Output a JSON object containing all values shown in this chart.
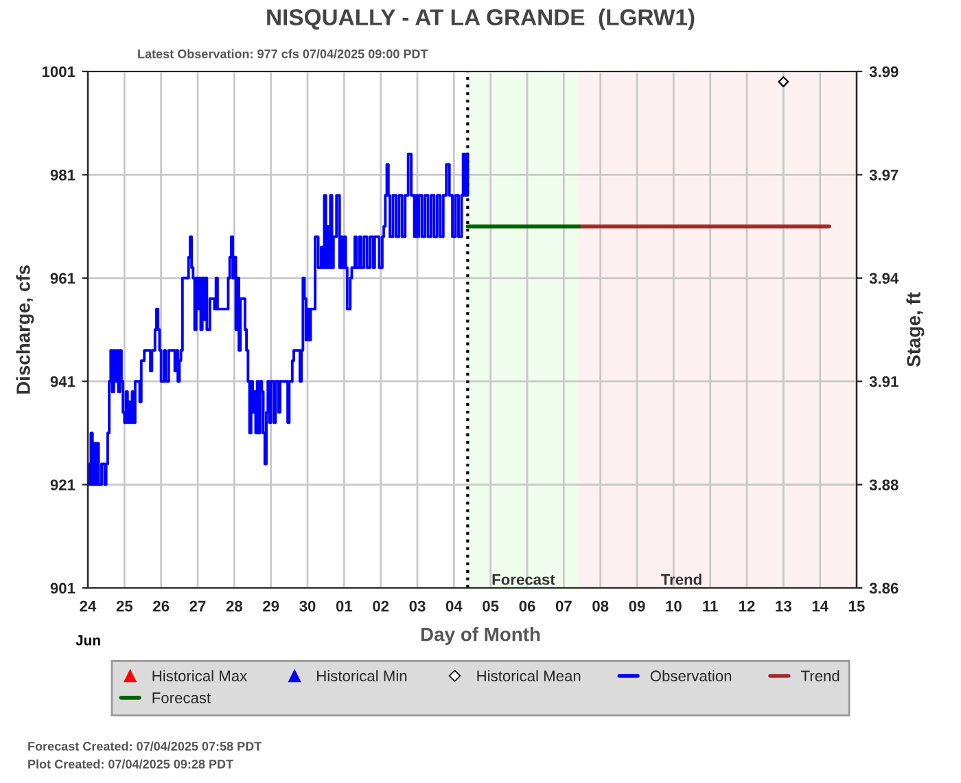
{
  "chart_data": {
    "type": "step",
    "title": "NISQUALLY - AT LA GRANDE  (LGRW1)",
    "xlabel": "Day of Month",
    "ylabel": "Discharge, cfs",
    "y2label": "Stage, ft",
    "annotations": [
      "Latest Observation: 977 cfs 07/04/2025 09:00 PDT",
      "Jun",
      "Forecast Created: 07/04/2025 07:58 PDT",
      "Plot Created: 07/04/2025 09:28 PDT"
    ],
    "xlim": [
      "2025-06-24",
      "2025-07-15"
    ],
    "xticks": [
      {
        "value": "2025-06-24",
        "label": "24"
      },
      {
        "value": "2025-06-25",
        "label": "25"
      },
      {
        "value": "2025-06-26",
        "label": "26"
      },
      {
        "value": "2025-06-27",
        "label": "27"
      },
      {
        "value": "2025-06-28",
        "label": "28"
      },
      {
        "value": "2025-06-29",
        "label": "29"
      },
      {
        "value": "2025-06-30",
        "label": "30"
      },
      {
        "value": "2025-07-01",
        "label": "01"
      },
      {
        "value": "2025-07-02",
        "label": "02"
      },
      {
        "value": "2025-07-03",
        "label": "03"
      },
      {
        "value": "2025-07-04",
        "label": "04"
      },
      {
        "value": "2025-07-05",
        "label": "05"
      },
      {
        "value": "2025-07-06",
        "label": "06"
      },
      {
        "value": "2025-07-07",
        "label": "07"
      },
      {
        "value": "2025-07-08",
        "label": "08"
      },
      {
        "value": "2025-07-09",
        "label": "09"
      },
      {
        "value": "2025-07-10",
        "label": "10"
      },
      {
        "value": "2025-07-11",
        "label": "11"
      },
      {
        "value": "2025-07-12",
        "label": "12"
      },
      {
        "value": "2025-07-13",
        "label": "13"
      },
      {
        "value": "2025-07-14",
        "label": "14"
      },
      {
        "value": "2025-07-15",
        "label": "15"
      }
    ],
    "ylim": [
      901,
      1001
    ],
    "yticks": [
      901,
      921,
      941,
      961,
      981,
      1001
    ],
    "y2lim": [
      3.8575,
      3.9925
    ],
    "y2ticks": [
      {
        "value": 3.8575,
        "label": "3.86"
      },
      {
        "value": 3.8845,
        "label": "3.88"
      },
      {
        "value": 3.9115,
        "label": "3.91"
      },
      {
        "value": 3.9385,
        "label": "3.94"
      },
      {
        "value": 3.9655,
        "label": "3.97"
      },
      {
        "value": 3.9925,
        "label": "3.99"
      }
    ],
    "grid": true,
    "legend": "bottom",
    "ref_lines": [
      {
        "axis": "x",
        "value": "2025-07-04T09:00",
        "color": "#000000",
        "line_style": "dotted"
      }
    ],
    "bands": [
      {
        "axis": "x",
        "from": "2025-07-04T09:00",
        "to": "2025-07-07T10:00",
        "label": "Forecast",
        "color": "#effcee"
      },
      {
        "axis": "x",
        "from": "2025-07-07T10:00",
        "to": "2025-07-15",
        "label": "Trend",
        "color": "#fdf0f0"
      }
    ],
    "series": [
      {
        "name": "Historical Max",
        "type": "scatter",
        "marker": "triangle",
        "color": "#ff0000"
      },
      {
        "name": "Historical Min",
        "type": "scatter",
        "marker": "triangle",
        "color": "#0000ff"
      },
      {
        "name": "Historical Mean",
        "type": "scatter",
        "marker": "diamond",
        "color": "#000000",
        "x": [
          "2025-07-13T00:00"
        ],
        "values": [
          999
        ]
      },
      {
        "name": "Observation",
        "color": "#0000ff",
        "x": [
          "2025-06-24T00:00",
          "2025-06-24T01:00",
          "2025-06-24T02:00",
          "2025-06-24T03:00",
          "2025-06-24T04:00",
          "2025-06-24T05:00",
          "2025-06-24T06:00",
          "2025-06-24T07:00",
          "2025-06-24T09:00",
          "2025-06-24T11:00",
          "2025-06-24T12:00",
          "2025-06-24T13:00",
          "2025-06-24T14:00",
          "2025-06-24T15:00",
          "2025-06-24T16:00",
          "2025-06-24T17:00",
          "2025-06-24T18:00",
          "2025-06-24T19:00",
          "2025-06-24T20:00",
          "2025-06-24T21:00",
          "2025-06-24T22:00",
          "2025-06-24T23:00",
          "2025-06-25T00:00",
          "2025-06-25T01:00",
          "2025-06-25T02:00",
          "2025-06-25T03:00",
          "2025-06-25T04:00",
          "2025-06-25T05:00",
          "2025-06-25T06:00",
          "2025-06-25T07:00",
          "2025-06-25T10:00",
          "2025-06-25T11:00",
          "2025-06-25T13:00",
          "2025-06-25T17:00",
          "2025-06-25T18:00",
          "2025-06-25T20:00",
          "2025-06-25T21:00",
          "2025-06-25T22:00",
          "2025-06-25T23:00",
          "2025-06-26T00:00",
          "2025-06-26T02:00",
          "2025-06-26T03:00",
          "2025-06-26T05:00",
          "2025-06-26T06:00",
          "2025-06-26T09:00",
          "2025-06-26T10:00",
          "2025-06-26T11:00",
          "2025-06-26T12:00",
          "2025-06-26T13:00",
          "2025-06-26T14:00",
          "2025-06-26T17:00",
          "2025-06-26T18:00",
          "2025-06-26T19:00",
          "2025-06-26T20:00",
          "2025-06-26T21:00",
          "2025-06-26T22:00",
          "2025-06-26T23:00",
          "2025-06-27T00:00",
          "2025-06-27T01:00",
          "2025-06-27T02:00",
          "2025-06-27T03:00",
          "2025-06-27T04:00",
          "2025-06-27T05:00",
          "2025-06-27T06:00",
          "2025-06-27T08:00",
          "2025-06-27T11:00",
          "2025-06-27T12:00",
          "2025-06-27T13:00",
          "2025-06-27T20:00",
          "2025-06-27T21:00",
          "2025-06-27T22:00",
          "2025-06-27T23:00",
          "2025-06-28T00:00",
          "2025-06-28T01:00",
          "2025-06-28T02:00",
          "2025-06-28T03:00",
          "2025-06-28T04:00",
          "2025-06-28T07:00",
          "2025-06-28T08:00",
          "2025-06-28T09:00",
          "2025-06-28T10:00",
          "2025-06-28T11:00",
          "2025-06-28T12:00",
          "2025-06-28T13:00",
          "2025-06-28T14:00",
          "2025-06-28T15:00",
          "2025-06-28T16:00",
          "2025-06-28T17:00",
          "2025-06-28T18:00",
          "2025-06-28T19:00",
          "2025-06-28T20:00",
          "2025-06-28T21:00",
          "2025-06-28T22:00",
          "2025-06-28T23:00",
          "2025-06-29T00:00",
          "2025-06-29T02:00",
          "2025-06-29T03:00",
          "2025-06-29T05:00",
          "2025-06-29T06:00",
          "2025-06-29T10:00",
          "2025-06-29T11:00",
          "2025-06-29T12:00",
          "2025-06-29T14:00",
          "2025-06-29T15:00",
          "2025-06-29T18:00",
          "2025-06-29T19:00",
          "2025-06-29T20:00",
          "2025-06-29T21:00",
          "2025-06-29T22:00",
          "2025-06-29T23:00",
          "2025-06-30T00:00",
          "2025-06-30T01:00",
          "2025-06-30T02:00",
          "2025-06-30T05:00",
          "2025-06-30T06:00",
          "2025-06-30T07:00",
          "2025-06-30T09:00",
          "2025-06-30T10:00",
          "2025-06-30T11:00",
          "2025-06-30T12:00",
          "2025-06-30T13:00",
          "2025-06-30T14:00",
          "2025-06-30T15:00",
          "2025-06-30T16:00",
          "2025-06-30T17:00",
          "2025-06-30T19:00",
          "2025-06-30T21:00",
          "2025-06-30T22:00",
          "2025-06-30T23:00",
          "2025-07-01T00:00",
          "2025-07-01T01:00",
          "2025-07-01T02:00",
          "2025-07-01T04:00",
          "2025-07-01T05:00",
          "2025-07-01T07:00",
          "2025-07-01T08:00",
          "2025-07-01T10:00",
          "2025-07-01T11:00",
          "2025-07-01T13:00",
          "2025-07-01T15:00",
          "2025-07-01T17:00",
          "2025-07-01T19:00",
          "2025-07-01T20:00",
          "2025-07-01T22:00",
          "2025-07-01T23:00",
          "2025-07-02T01:00",
          "2025-07-02T02:00",
          "2025-07-02T03:00",
          "2025-07-02T04:00",
          "2025-07-02T05:00",
          "2025-07-02T06:00",
          "2025-07-02T08:00",
          "2025-07-02T10:00",
          "2025-07-02T12:00",
          "2025-07-02T14:00",
          "2025-07-02T16:00",
          "2025-07-02T18:00",
          "2025-07-02T20:00",
          "2025-07-02T22:00",
          "2025-07-02T23:00",
          "2025-07-03T00:00",
          "2025-07-03T01:00",
          "2025-07-03T03:00",
          "2025-07-03T05:00",
          "2025-07-03T07:00",
          "2025-07-03T09:00",
          "2025-07-03T11:00",
          "2025-07-03T13:00",
          "2025-07-03T15:00",
          "2025-07-03T17:00",
          "2025-07-03T19:00",
          "2025-07-03T21:00",
          "2025-07-03T23:00",
          "2025-07-04T01:00",
          "2025-07-04T03:00",
          "2025-07-04T05:00",
          "2025-07-04T06:00",
          "2025-07-04T07:00",
          "2025-07-04T08:00",
          "2025-07-04T09:00"
        ],
        "values": [
          925,
          921,
          931,
          921,
          929,
          921,
          929,
          921,
          925,
          921,
          925,
          931,
          941,
          947,
          939,
          947,
          941,
          947,
          939,
          947,
          941,
          935,
          933,
          939,
          933,
          937,
          933,
          939,
          933,
          941,
          937,
          945,
          947,
          943,
          947,
          951,
          955,
          951,
          947,
          941,
          947,
          941,
          947,
          947,
          943,
          947,
          941,
          945,
          947,
          961,
          961,
          965,
          969,
          963,
          961,
          951,
          961,
          955,
          961,
          951,
          961,
          953,
          961,
          951,
          957,
          955,
          961,
          955,
          961,
          965,
          969,
          961,
          965,
          951,
          961,
          947,
          957,
          951,
          947,
          941,
          931,
          941,
          935,
          939,
          931,
          941,
          931,
          941,
          939,
          931,
          925,
          935,
          941,
          933,
          941,
          933,
          941,
          935,
          941,
          941,
          933,
          941,
          945,
          947,
          947,
          941,
          947,
          961,
          957,
          949,
          955,
          949,
          955,
          969,
          969,
          963,
          967,
          963,
          977,
          963,
          971,
          963,
          977,
          963,
          969,
          977,
          963,
          969,
          963,
          969,
          963,
          955,
          961,
          963,
          969,
          963,
          969,
          963,
          969,
          963,
          969,
          963,
          969,
          969,
          963,
          969,
          971,
          977,
          983,
          977,
          969,
          977,
          969,
          977,
          969,
          977,
          985,
          977,
          969,
          977,
          969,
          977,
          969,
          977,
          969,
          977,
          969,
          977,
          969,
          977,
          983,
          977,
          969,
          977,
          969,
          977,
          985,
          977,
          985,
          977
        ]
      },
      {
        "name": "Trend",
        "type": "line",
        "color": "#a52a2a",
        "x": [
          "2025-07-07T10:00",
          "2025-07-14T06:00"
        ],
        "values": [
          971,
          971
        ]
      },
      {
        "name": "Forecast",
        "type": "line",
        "color": "#006400",
        "x": [
          "2025-07-04T09:00",
          "2025-07-07T10:00"
        ],
        "values": [
          971,
          971
        ]
      }
    ]
  }
}
